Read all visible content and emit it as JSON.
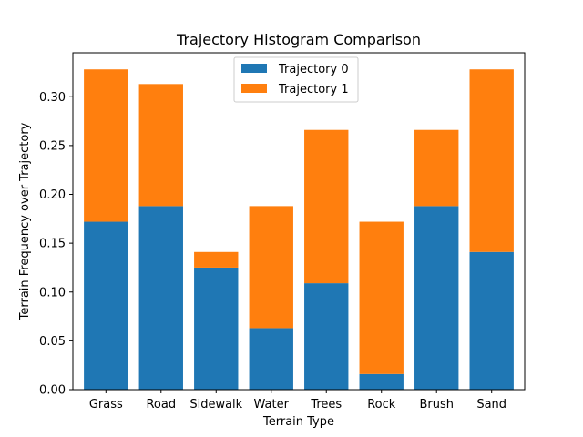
{
  "chart_data": {
    "type": "bar",
    "stacked": true,
    "title": "Trajectory Histogram Comparison",
    "xlabel": "Terrain Type",
    "ylabel": "Terrain Frequency over Trajectory",
    "categories": [
      "Grass",
      "Road",
      "Sidewalk",
      "Water",
      "Trees",
      "Rock",
      "Brush",
      "Sand"
    ],
    "series": [
      {
        "name": "Trajectory 0",
        "color": "#1f77b4",
        "values": [
          0.172,
          0.188,
          0.125,
          0.063,
          0.109,
          0.016,
          0.188,
          0.141
        ]
      },
      {
        "name": "Trajectory 1",
        "color": "#ff7f0e",
        "values": [
          0.156,
          0.125,
          0.016,
          0.125,
          0.157,
          0.156,
          0.078,
          0.187
        ]
      }
    ],
    "ylim": [
      0,
      0.345
    ],
    "yticks": [
      "0.00",
      "0.05",
      "0.10",
      "0.15",
      "0.20",
      "0.25",
      "0.30"
    ],
    "legend_position": "upper center",
    "grid": false
  }
}
